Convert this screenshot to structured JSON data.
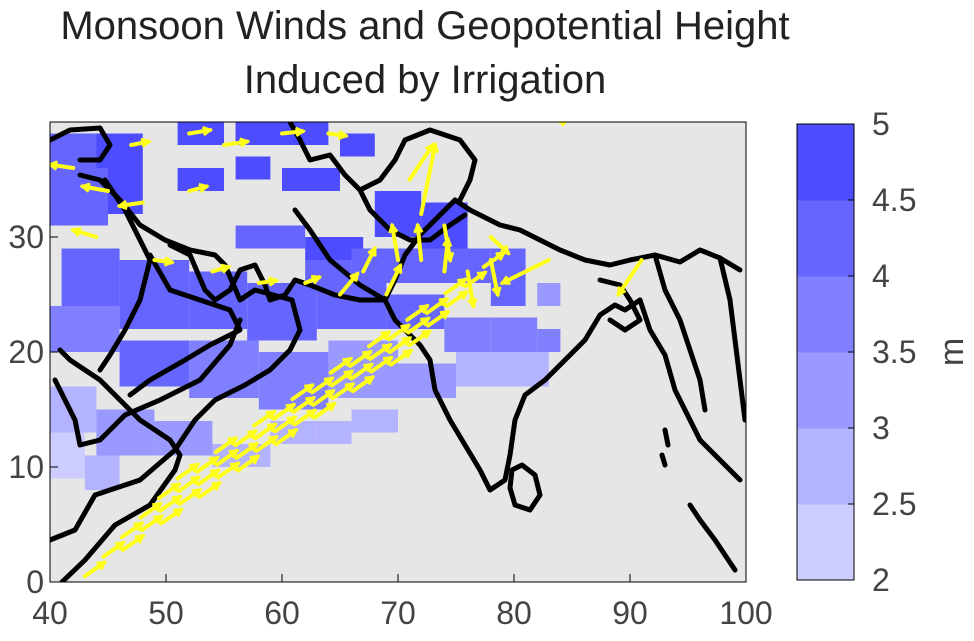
{
  "title_line1": "Monsoon Winds and Geopotential Height",
  "title_line2": "Induced by Irrigation",
  "colors": {
    "land_background": "#e6e6e6",
    "coastline": "#000000",
    "wind_vectors": "#ffff1a",
    "colorbar": [
      "#ccccff",
      "#b3b3ff",
      "#9999ff",
      "#8080ff",
      "#6666ff",
      "#4d4dff"
    ]
  },
  "map": {
    "x_ticks": [
      "40",
      "50",
      "60",
      "70",
      "80",
      "90",
      "100"
    ],
    "y_ticks": [
      "0",
      "10",
      "20",
      "30"
    ],
    "lon_range": [
      40,
      100
    ],
    "lat_range": [
      0,
      40
    ]
  },
  "colorbar": {
    "ticks": [
      "2",
      "2.5",
      "3",
      "3.5",
      "4",
      "4.5",
      "5"
    ],
    "range": [
      2,
      5
    ],
    "unit": "m"
  }
}
